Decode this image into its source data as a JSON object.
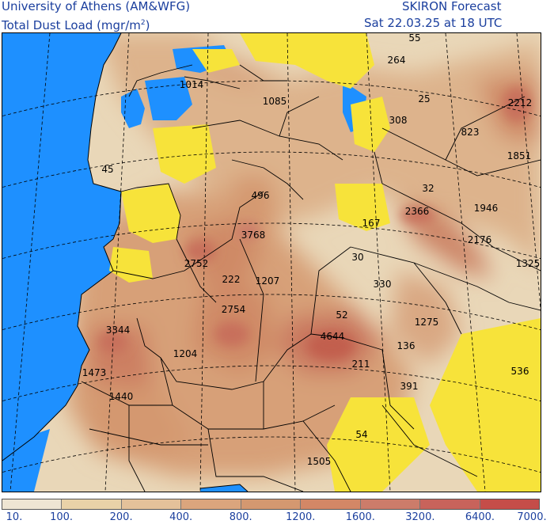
{
  "header": {
    "left_line1": "University of Athens (AM&WFG)",
    "left_line2_main": "Total Dust Load (mgr/m",
    "left_line2_sup": "2",
    "left_line2_end": ")",
    "right_line1": "SKIRON Forecast",
    "right_line2": "Sat 22.03.25 at 18 UTC"
  },
  "colors": {
    "sea": "#1e90ff",
    "clean_land": "#f7e33a",
    "frame": "#000000",
    "header_text": "#1b3f9e"
  },
  "map_labels": [
    "55",
    "264",
    "1014",
    "1085",
    "25",
    "2212",
    "308",
    "823",
    "1851",
    "45",
    "496",
    "32",
    "1946",
    "167",
    "2366",
    "3768",
    "2176",
    "30",
    "1325",
    "2752",
    "222",
    "1207",
    "330",
    "52",
    "1275",
    "2754",
    "4644",
    "136",
    "3344",
    "1204",
    "211",
    "536",
    "1473",
    "391",
    "1440",
    "54",
    "1505"
  ],
  "colorbar": {
    "segment_colors": [
      "#eee5d3",
      "#e9d2a8",
      "#e4c19a",
      "#dba57d",
      "#d49870",
      "#d38766",
      "#cc7c6a",
      "#c8635b",
      "#c54d49"
    ],
    "tick_labels": [
      "10.",
      "100.",
      "200.",
      "400.",
      "800.",
      "1200.",
      "1600.",
      "3200.",
      "6400.",
      "7000."
    ]
  }
}
